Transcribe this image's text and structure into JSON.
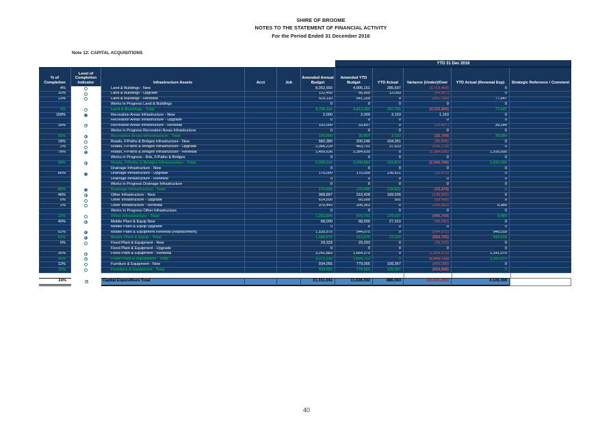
{
  "title": {
    "line1": "SHIRE OF BROOME",
    "line2": "NOTES TO THE STATEMENT OF FINANCIAL ACTIVITY",
    "line3": "For the Period Ended 31 December 2016"
  },
  "note": {
    "label": "Note 12: CAPITAL ACQUISITIONS"
  },
  "page": {
    "number": "40"
  },
  "colors": {
    "table_navy": "#17365D",
    "grand_total_blue": "#4587C7",
    "total_green": "#00B050",
    "negative_red": "#E25F5F",
    "indicator_blue": "#2E75B6"
  },
  "table": {
    "banner": "YTD 31 Dec 2016",
    "headers": [
      "% of Completion",
      "Level of Completion Indicator",
      "Infrastructure Assets",
      "Acct",
      "Job",
      "Amended Annual Budget",
      "Amended YTD Budget",
      "YTD Actual",
      "Variance (Under)/Over",
      "YTD Actual (Renewal Exp)",
      "Strategic Reference / Comment"
    ],
    "rows": [
      {
        "pct": "4%",
        "ind": 0,
        "name": "Land & Buildings - New",
        "annual": "8,052,550",
        "ytd_budget": "4,005,151",
        "ytd_actual": "285,697",
        "variance": "(3,719,454)",
        "renewal": "0",
        "total": false
      },
      {
        "pct": "10%",
        "ind": 0,
        "name": "Land & Buildings - Upgrade",
        "annual": "122,450",
        "ytd_budget": "66,950",
        "ytd_actual": "12,093",
        "variance": "(54,857)",
        "renewal": "0",
        "total": false
      },
      {
        "pct": "13%",
        "ind": 0,
        "name": "Land & Buildings - Renewal",
        "annual": "615,110",
        "ytd_budget": "541,159",
        "ytd_actual": "0",
        "variance": "(541,159)",
        "renewal": "77,947",
        "total": false
      },
      {
        "pct": "",
        "ind": null,
        "name": "Works in Progress Land & Buildings",
        "annual": "0",
        "ytd_budget": "0",
        "ytd_actual": "0",
        "variance": "0",
        "renewal": "0",
        "total": false
      },
      {
        "pct": "4%",
        "ind": 0,
        "name": "Land & Buildings - Total",
        "annual": "8,790,110",
        "ytd_budget": "4,613,260",
        "ytd_actual": "297,791",
        "variance": "(4,315,469)",
        "renewal": "77,947",
        "total": true
      },
      {
        "pct": "158%",
        "ind": 1,
        "name": "Recreation Areas Infrastructure - New",
        "annual": "2,000",
        "ytd_budget": "2,000",
        "ytd_actual": "3,153",
        "variance": "1,153",
        "renewal": "0",
        "total": false
      },
      {
        "pct": "",
        "ind": null,
        "name": "Recreation Areas Infrastructure - Upgrade",
        "annual": "0",
        "ytd_budget": "0",
        "ytd_actual": "0",
        "variance": "0",
        "renewal": "0",
        "total": false
      },
      {
        "pct": "39%",
        "ind": 0.25,
        "name": "Recreation Areas Infrastructure - Renewal",
        "annual": "102,000",
        "ytd_budget": "33,857",
        "ytd_actual": "0",
        "variance": "(33,857)",
        "renewal": "39,284",
        "total": false
      },
      {
        "pct": "",
        "ind": null,
        "name": "Works in Progress Recreation Areas Infrastructure",
        "annual": "0",
        "ytd_budget": "0",
        "ytd_actual": "0",
        "variance": "0",
        "renewal": "0",
        "total": false
      },
      {
        "pct": "41%",
        "ind": 0.5,
        "name": "Recreation Areas Infrastructure - Total",
        "annual": "104,000",
        "ytd_budget": "35,857",
        "ytd_actual": "3,153",
        "variance": "(32,704)",
        "renewal": "39,284",
        "total": true
      },
      {
        "pct": "18%",
        "ind": 0,
        "name": "Roads, F/Paths & Bridges Infrastructure - New",
        "annual": "582,380",
        "ytd_budget": "200,246",
        "ytd_actual": "104,351",
        "variance": "(95,895)",
        "renewal": "0",
        "total": false
      },
      {
        "pct": "2%",
        "ind": 0,
        "name": "Roads, F/Paths & Bridges Infrastructure - Upgrade",
        "annual": "2,066,229",
        "ytd_budget": "463,701",
        "ytd_actual": "37,523",
        "variance": "(426,178)",
        "renewal": "0",
        "total": false
      },
      {
        "pct": "78%",
        "ind": 0.75,
        "name": "Roads, F/Paths & Bridges Infrastructure - Renewal",
        "annual": "2,450,636",
        "ytd_budget": "2,384,635",
        "ytd_actual": "0",
        "variance": "(2,384,635)",
        "renewal": "1,916,000",
        "total": false
      },
      {
        "pct": "",
        "ind": null,
        "name": "Works in Progress - Rds, F/Paths & Bridges",
        "annual": "0",
        "ytd_budget": "0",
        "ytd_actual": "0",
        "variance": "0",
        "renewal": "0",
        "total": false
      },
      {
        "pct": "40%",
        "ind": 0.5,
        "name": "Roads, F/Paths & Bridges Infrastructure - Total",
        "annual": "5,099,245",
        "ytd_budget": "3,048,582",
        "ytd_actual": "141,874",
        "variance": "(2,906,708)",
        "renewal": "1,916,000",
        "total": true
      },
      {
        "pct": "",
        "ind": null,
        "name": "Drainage Infrastructure - New",
        "annual": "0",
        "ytd_budget": "0",
        "ytd_actual": "0",
        "variance": "0",
        "renewal": "0",
        "total": false
      },
      {
        "pct": "80%",
        "ind": 1,
        "name": "Drainage Infrastructure - Upgrade",
        "annual": "170,000",
        "ytd_budget": "170,000",
        "ytd_actual": "136,521",
        "variance": "(33,479)",
        "renewal": "0",
        "total": false
      },
      {
        "pct": "",
        "ind": null,
        "name": "Drainage Infrastructure - Renewal",
        "annual": "0",
        "ytd_budget": "0",
        "ytd_actual": "0",
        "variance": "0",
        "renewal": "0",
        "total": false
      },
      {
        "pct": "",
        "ind": null,
        "name": "Works in Progress Drainage Infrastructure",
        "annual": "0",
        "ytd_budget": "0",
        "ytd_actual": "0",
        "variance": "0",
        "renewal": "0",
        "total": false
      },
      {
        "pct": "80%",
        "ind": 1,
        "name": "Drainage Infrastructure - Total",
        "annual": "170,000",
        "ytd_budget": "170,000",
        "ytd_actual": "136,521",
        "variance": "(33,479)",
        "renewal": "0",
        "total": true
      },
      {
        "pct": "46%",
        "ind": 0.5,
        "name": "Other Infrastructure - New",
        "annual": "368,897",
        "ytd_budget": "310,428",
        "ytd_actual": "169,526",
        "variance": "(140,902)",
        "renewal": "0",
        "total": false
      },
      {
        "pct": "0%",
        "ind": 0,
        "name": "Other Infrastructure - Upgrade",
        "annual": "614,500",
        "ytd_budget": "60,000",
        "ytd_actual": "501",
        "variance": "(59,499)",
        "renewal": "0",
        "total": false
      },
      {
        "pct": "2%",
        "ind": 0,
        "name": "Other Infrastructure - Renewal",
        "annual": "370,443",
        "ytd_budget": "205,363",
        "ytd_actual": "0",
        "variance": "(205,363)",
        "renewal": "6,989",
        "total": false
      },
      {
        "pct": "",
        "ind": null,
        "name": "Works In Progress Other Infrastructure",
        "annual": "0",
        "ytd_budget": "0",
        "ytd_actual": "0",
        "variance": "0",
        "renewal": "0",
        "total": false
      },
      {
        "pct": "13%",
        "ind": 0,
        "name": "Other Infrastructure - Total",
        "annual": "1,353,840",
        "ytd_budget": "575,791",
        "ytd_actual": "170,027",
        "variance": "(405,764)",
        "renewal": "6,989",
        "total": true
      },
      {
        "pct": "40%",
        "ind": 0.5,
        "name": "Mobile Plant & Equip New",
        "annual": "68,000",
        "ytd_budget": "68,000",
        "ytd_actual": "27,310",
        "variance": "(40,690)",
        "renewal": "0",
        "total": false
      },
      {
        "pct": "",
        "ind": null,
        "name": "Mobile Plant & Equip Upgrade",
        "annual": "0",
        "ytd_budget": "0",
        "ytd_actual": "0",
        "variance": "0",
        "renewal": "0",
        "total": false
      },
      {
        "pct": "62%",
        "ind": 0.75,
        "name": "Mobile Plant & Equipment Renewal (Replacement)",
        "annual": "1,520,575",
        "ytd_budget": "544,075",
        "ytd_actual": "0",
        "variance": "(544,075)",
        "renewal": "945,018",
        "total": false
      },
      {
        "pct": "61%",
        "ind": 0.75,
        "name": "Mobile Plant & Equip  - Total",
        "annual": "1,588,575",
        "ytd_budget": "612,075",
        "ytd_actual": "27,310",
        "variance": "(584,765)",
        "renewal": "945,018",
        "total": true
      },
      {
        "pct": "0%",
        "ind": 0,
        "name": "Fixed Plant & Equipment - New",
        "annual": "29,333",
        "ytd_budget": "29,333",
        "ytd_actual": "0",
        "variance": "(29,333)",
        "renewal": "0",
        "total": false
      },
      {
        "pct": "",
        "ind": null,
        "name": "Fixed Plant & Equipment - Upgrade",
        "annual": "0",
        "ytd_budget": "0",
        "ytd_actual": "0",
        "variance": "0",
        "renewal": "0",
        "total": false
      },
      {
        "pct": "35%",
        "ind": 0.25,
        "name": "Fixed Plant & Equipment - Renewal",
        "annual": "3,241,883",
        "ytd_budget": "1,664,379",
        "ytd_actual": "0",
        "variance": "(1,664,379)",
        "renewal": "1,141,070",
        "total": false
      },
      {
        "pct": "35%",
        "ind": 0.25,
        "name": "Fixed Plant & Equipment - Total",
        "annual": "3,271,216",
        "ytd_budget": "1,693,712",
        "ytd_actual": "0",
        "variance": "(1,693,712)",
        "renewal": "1,141,070",
        "total": true
      },
      {
        "pct": "12%",
        "ind": 0,
        "name": "Furniture & Equipment - New",
        "annual": "934,055",
        "ytd_budget": "779,055",
        "ytd_actual": "109,367",
        "variance": "(669,688)",
        "renewal": "0",
        "total": false
      },
      {
        "pct": "12%",
        "ind": 0,
        "name": "Furniture & Equipment - Total",
        "annual": "934,055",
        "ytd_budget": "779,055",
        "ytd_actual": "109,367",
        "variance": "(669,688)",
        "renewal": "0",
        "total": true
      }
    ],
    "grand_total": {
      "pct": "24%",
      "ind": 0.25,
      "name": "Capital Expenditure Total",
      "annual": "21,311,041",
      "ytd_budget": "11,528,332",
      "ytd_actual": "886,043",
      "variance": "(10,642,289)",
      "renewal": "4,126,308"
    }
  }
}
